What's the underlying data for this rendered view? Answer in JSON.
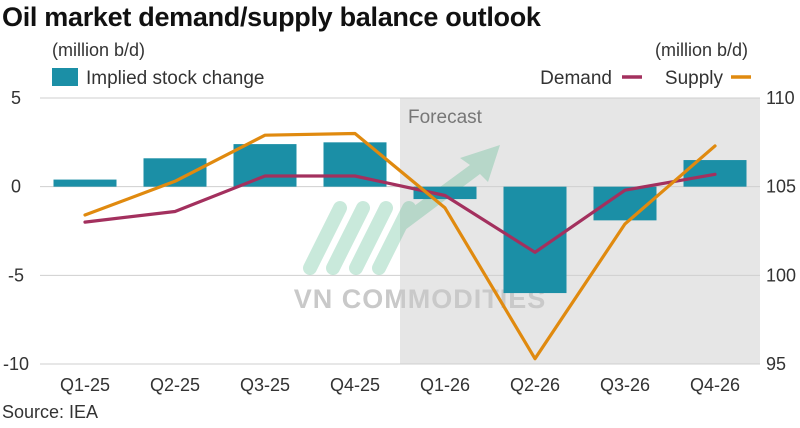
{
  "title": "Oil market demand/supply balance outlook",
  "left_unit": "(million b/d)",
  "right_unit": "(million b/d)",
  "source": "Source: IEA",
  "watermark": "VN COMMODITIES",
  "colors": {
    "bar": "#1b8fa6",
    "demand": "#a3305e",
    "supply": "#e08a0f",
    "forecast_bg": "#e6e6e6"
  },
  "chart_data": {
    "type": "bar+line",
    "categories": [
      "Q1-25",
      "Q2-25",
      "Q3-25",
      "Q4-25",
      "Q1-26",
      "Q2-26",
      "Q3-26",
      "Q4-26"
    ],
    "forecast_label": "Forecast",
    "forecast_start_category": "Q1-26",
    "bars": {
      "name": "Implied stock change",
      "axis": "left",
      "values": [
        0.4,
        1.6,
        2.4,
        2.5,
        -0.7,
        -6.0,
        -1.9,
        1.5
      ]
    },
    "lines": [
      {
        "name": "Demand",
        "axis": "right",
        "values": [
          103.0,
          103.6,
          105.6,
          105.6,
          104.5,
          101.3,
          104.8,
          105.7
        ]
      },
      {
        "name": "Supply",
        "axis": "right",
        "values": [
          103.4,
          105.3,
          107.9,
          108.0,
          103.8,
          95.3,
          102.9,
          107.3
        ]
      }
    ],
    "y_left": {
      "ticks": [
        5,
        0,
        -5,
        -10
      ],
      "ylim": [
        -10,
        5
      ]
    },
    "y_right": {
      "ticks": [
        110,
        105,
        100,
        95
      ],
      "ylim": [
        95,
        110
      ]
    },
    "grid": true,
    "legend": [
      {
        "name": "Implied stock change",
        "position": "top-left"
      },
      {
        "name": "Demand",
        "position": "top-right"
      },
      {
        "name": "Supply",
        "position": "top-right"
      }
    ]
  }
}
